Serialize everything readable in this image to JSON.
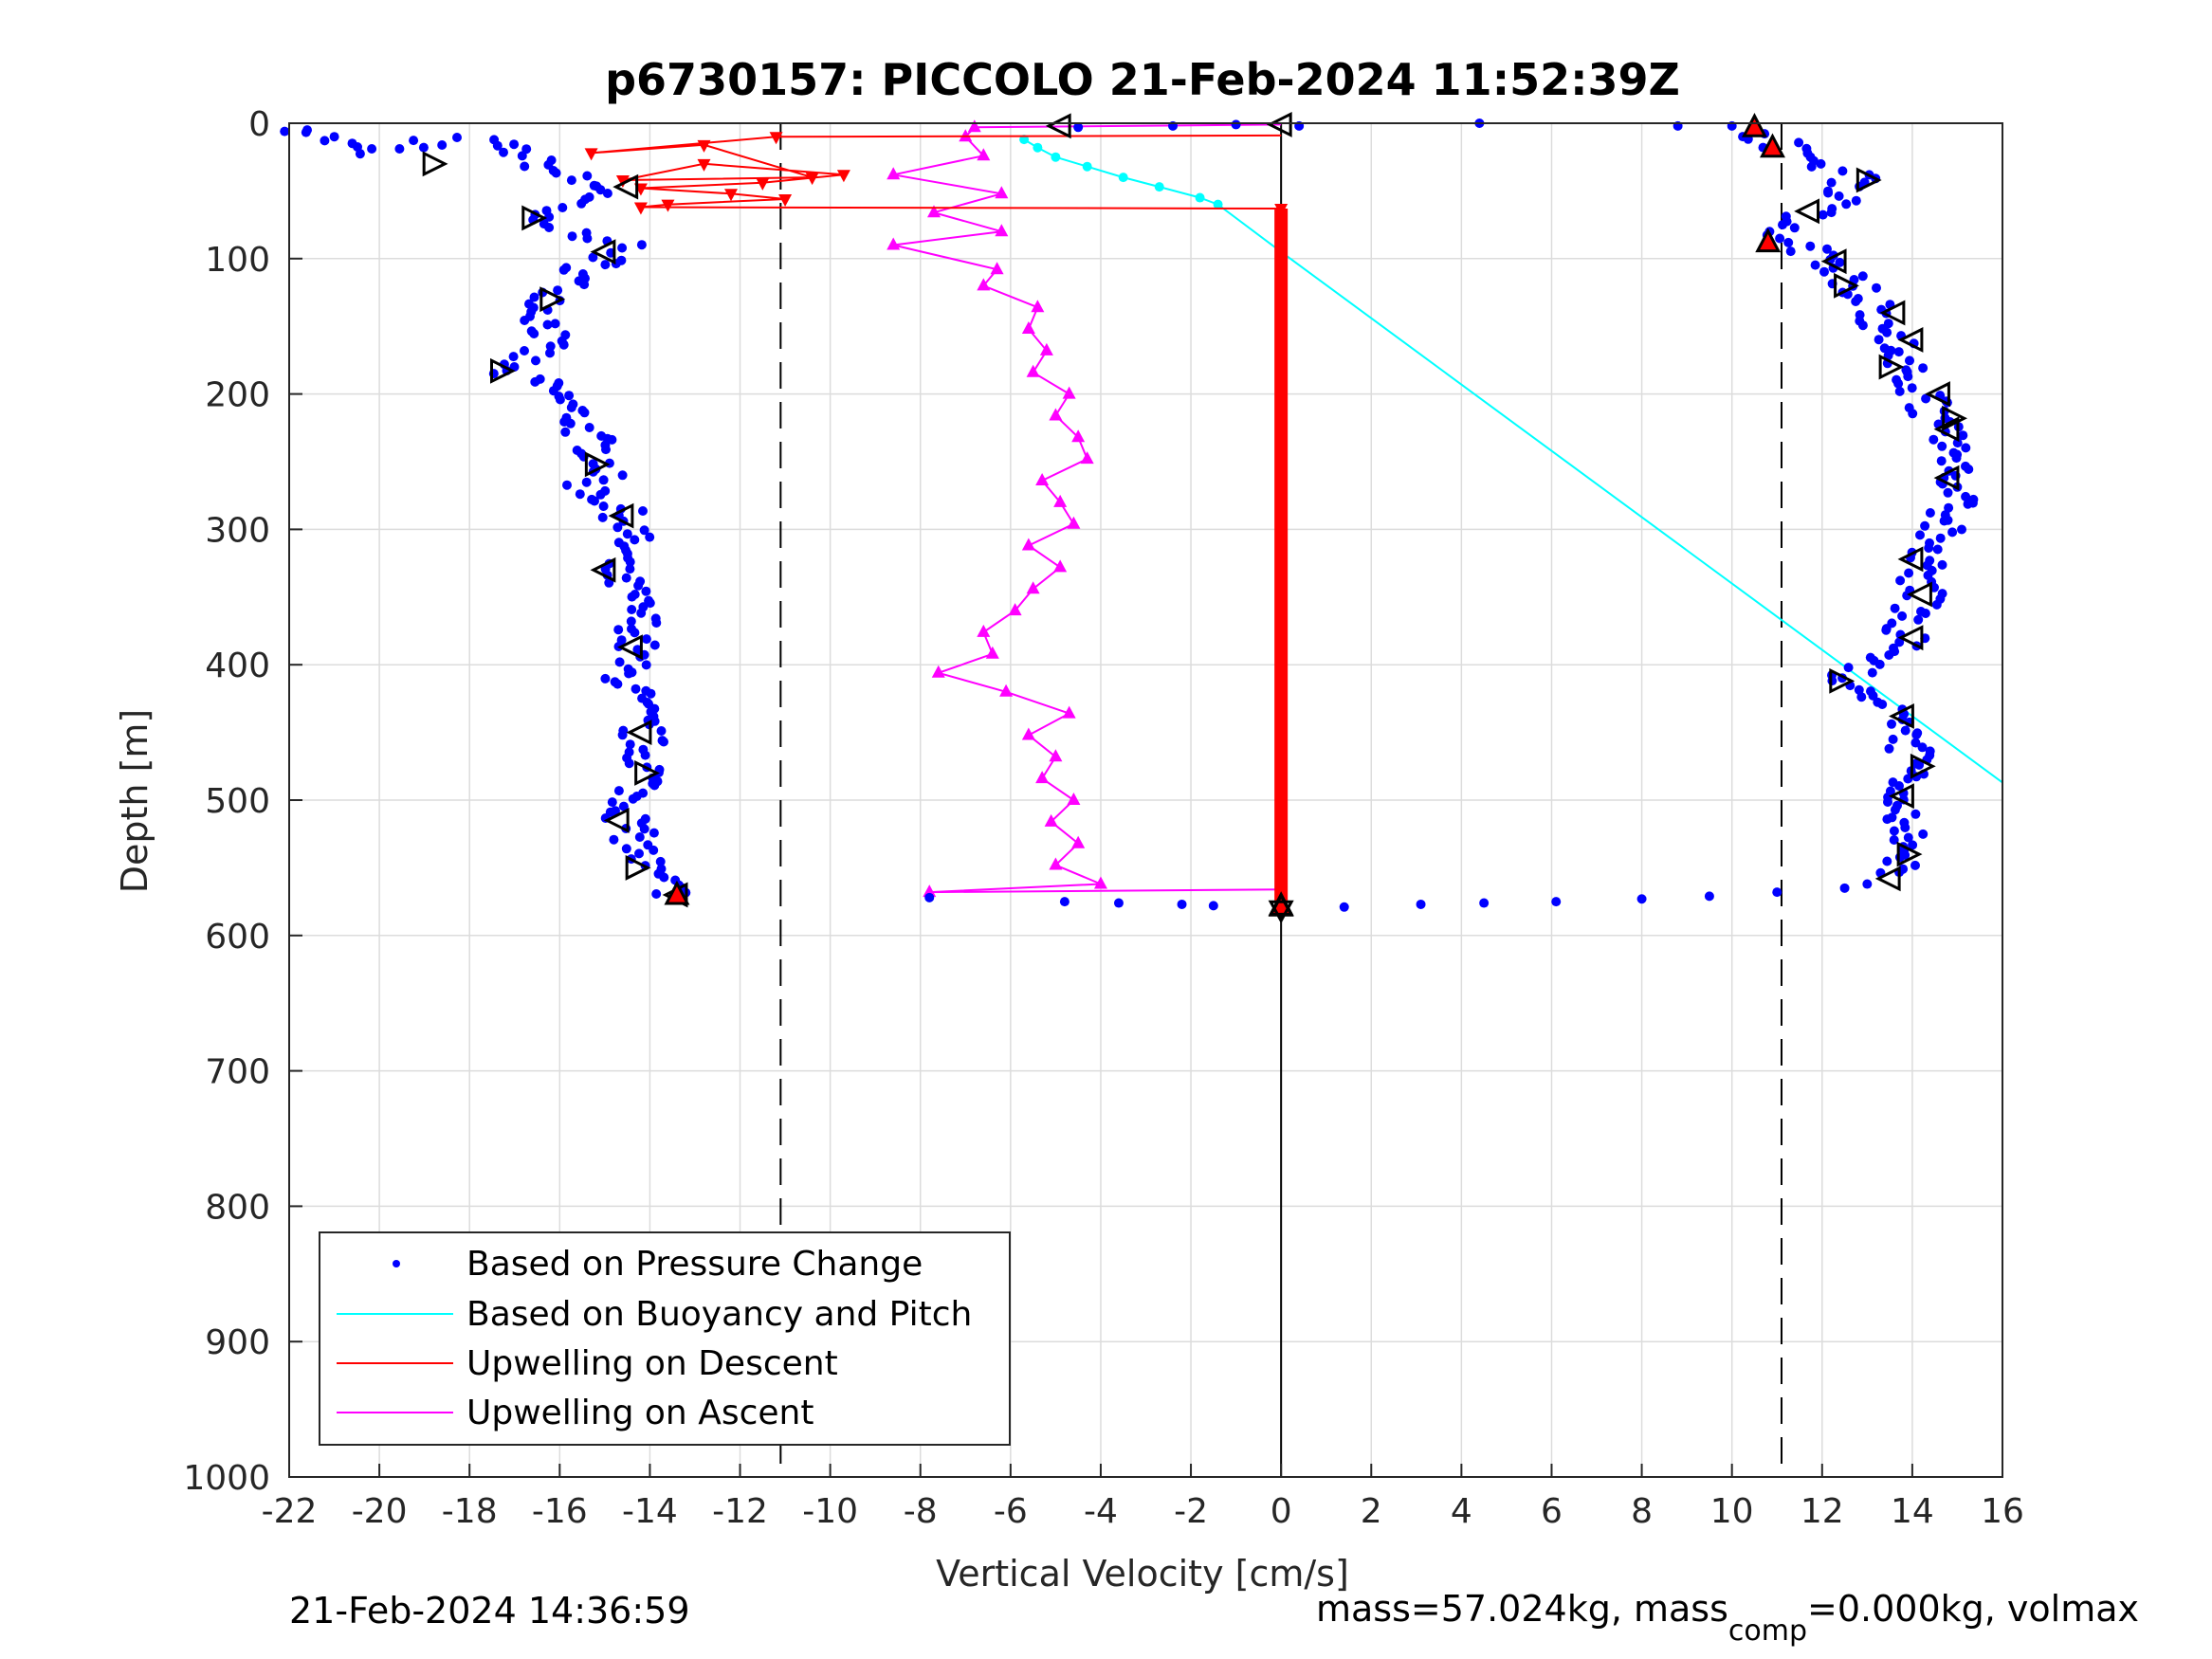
{
  "title": "p6730157: PICCOLO 21-Feb-2024 11:52:39Z",
  "footer_left": "21-Feb-2024 14:36:59",
  "footer_right": {
    "part1": "mass=57.024kg, mass",
    "sub": "comp",
    "part2": "=0.000kg, volmax"
  },
  "colors": {
    "pressure": "#0000ff",
    "buoyancy": "#00ffff",
    "upwell_descent": "#ff0000",
    "upwell_ascent": "#ff00ff",
    "grid": "#dcdcdc",
    "axes": "#262626"
  },
  "chart_data": {
    "type": "scatter",
    "xlabel": "Vertical Velocity [cm/s]",
    "ylabel": "Depth [m]",
    "xlim": [
      -22,
      16
    ],
    "ylim": [
      0,
      1000
    ],
    "y_reversed": true,
    "grid": true,
    "legend_position": "bottom-left",
    "xticks": [
      -22,
      -20,
      -18,
      -16,
      -14,
      -12,
      -10,
      -8,
      -6,
      -4,
      -2,
      0,
      2,
      4,
      6,
      8,
      10,
      12,
      14,
      16
    ],
    "yticks": [
      0,
      100,
      200,
      300,
      400,
      500,
      600,
      700,
      800,
      900,
      1000
    ],
    "reference_lines": [
      {
        "x": -11.1,
        "style": "dashed"
      },
      {
        "x": 0,
        "style": "solid"
      },
      {
        "x": 11.1,
        "style": "dashed"
      }
    ],
    "legend": [
      "Based on Pressure Change",
      "Based on Buoyancy and Pitch",
      "Upwelling on Descent",
      "Upwelling on Ascent"
    ],
    "series": [
      {
        "name": "Based on Pressure Change",
        "style": "dots",
        "descent": [
          [
            -21.6,
            5
          ],
          [
            -20.3,
            22
          ],
          [
            -19.2,
            18
          ],
          [
            -18.7,
            10
          ],
          [
            -17.6,
            12
          ],
          [
            -16.9,
            22
          ],
          [
            -16.2,
            35
          ],
          [
            -15.4,
            45
          ],
          [
            -14.8,
            52
          ],
          [
            -16.3,
            62
          ],
          [
            -16.8,
            72
          ],
          [
            -15.7,
            80
          ],
          [
            -14.6,
            88
          ],
          [
            -14.9,
            98
          ],
          [
            -15.6,
            112
          ],
          [
            -16.0,
            125
          ],
          [
            -16.4,
            140
          ],
          [
            -16.2,
            155
          ],
          [
            -16.6,
            170
          ],
          [
            -17.4,
            183
          ],
          [
            -16.2,
            195
          ],
          [
            -15.8,
            210
          ],
          [
            -15.5,
            225
          ],
          [
            -15.2,
            240
          ],
          [
            -14.9,
            255
          ],
          [
            -15.4,
            268
          ],
          [
            -14.7,
            285
          ],
          [
            -14.4,
            300
          ],
          [
            -14.6,
            315
          ],
          [
            -14.9,
            328
          ],
          [
            -14.5,
            345
          ],
          [
            -14.3,
            360
          ],
          [
            -14.2,
            375
          ],
          [
            -14.4,
            390
          ],
          [
            -14.6,
            405
          ],
          [
            -14.4,
            420
          ],
          [
            -14.3,
            435
          ],
          [
            -14.2,
            450
          ],
          [
            -14.1,
            465
          ],
          [
            -14.0,
            480
          ],
          [
            -14.3,
            495
          ],
          [
            -14.5,
            510
          ],
          [
            -14.4,
            525
          ],
          [
            -14.2,
            540
          ],
          [
            -14.0,
            555
          ],
          [
            -13.6,
            565
          ],
          [
            -13.4,
            570
          ],
          [
            -12.1,
            572
          ]
        ],
        "bottom": [
          [
            -7.8,
            572
          ],
          [
            -4.8,
            575
          ],
          [
            -3.6,
            576
          ],
          [
            -2.2,
            577
          ],
          [
            -1.5,
            578
          ],
          [
            0.0,
            578
          ],
          [
            1.4,
            579
          ],
          [
            3.1,
            577
          ],
          [
            4.5,
            576
          ],
          [
            6.1,
            575
          ],
          [
            8.0,
            573
          ],
          [
            9.5,
            571
          ],
          [
            11.0,
            568
          ],
          [
            12.5,
            565
          ],
          [
            13.0,
            562
          ]
        ],
        "ascent": [
          [
            13.6,
            555
          ],
          [
            13.8,
            540
          ],
          [
            13.8,
            525
          ],
          [
            13.7,
            510
          ],
          [
            13.9,
            495
          ],
          [
            14.0,
            480
          ],
          [
            13.9,
            465
          ],
          [
            13.8,
            450
          ],
          [
            13.6,
            435
          ],
          [
            12.6,
            420
          ],
          [
            12.5,
            410
          ],
          [
            13.5,
            395
          ],
          [
            13.8,
            380
          ],
          [
            14.0,
            365
          ],
          [
            14.2,
            350
          ],
          [
            14.1,
            335
          ],
          [
            14.3,
            320
          ],
          [
            14.5,
            305
          ],
          [
            14.8,
            290
          ],
          [
            15.0,
            275
          ],
          [
            15.1,
            260
          ],
          [
            14.9,
            245
          ],
          [
            14.7,
            230
          ],
          [
            14.5,
            215
          ],
          [
            14.2,
            200
          ],
          [
            14.0,
            185
          ],
          [
            13.8,
            170
          ],
          [
            13.5,
            155
          ],
          [
            13.2,
            140
          ],
          [
            12.8,
            125
          ],
          [
            12.4,
            110
          ],
          [
            11.8,
            95
          ],
          [
            11.2,
            85
          ],
          [
            11.6,
            70
          ],
          [
            12.5,
            55
          ],
          [
            12.8,
            40
          ],
          [
            11.6,
            25
          ],
          [
            11.0,
            15
          ],
          [
            10.4,
            5
          ]
        ],
        "surface": [
          [
            -21.6,
            5
          ],
          [
            -4.5,
            3
          ],
          [
            -2.4,
            2
          ],
          [
            -1.0,
            1
          ],
          [
            0.4,
            2
          ],
          [
            4.4,
            0
          ],
          [
            8.8,
            2
          ],
          [
            10.0,
            2
          ]
        ]
      },
      {
        "name": "Based on Buoyancy and Pitch",
        "style": "line",
        "points": [
          [
            -5.7,
            12
          ],
          [
            -5.4,
            18
          ],
          [
            -5.0,
            25
          ],
          [
            -4.3,
            32
          ],
          [
            -3.5,
            40
          ],
          [
            -2.7,
            47
          ],
          [
            -1.8,
            55
          ],
          [
            -1.4,
            60
          ],
          [
            0.0,
            95
          ],
          [
            16.0,
            487
          ]
        ]
      },
      {
        "name": "Upwelling on Descent",
        "style": "line-triangle-down",
        "points": [
          [
            -11.2,
            10
          ],
          [
            -15.3,
            22
          ],
          [
            -12.8,
            16
          ],
          [
            -10.4,
            40
          ],
          [
            -14.6,
            42
          ],
          [
            -12.8,
            30
          ],
          [
            -9.7,
            38
          ],
          [
            -11.5,
            44
          ],
          [
            -14.2,
            48
          ],
          [
            -12.2,
            52
          ],
          [
            -11.0,
            56
          ],
          [
            -13.6,
            60
          ],
          [
            -14.2,
            62
          ],
          [
            0.0,
            63
          ]
        ],
        "surface_link": [
          [
            -11.2,
            10
          ],
          [
            0.0,
            9
          ]
        ],
        "flat_segment": [
          [
            0.0,
            63
          ],
          [
            0.0,
            575
          ]
        ]
      },
      {
        "name": "Upwelling on Ascent",
        "style": "line-triangle-up",
        "points": [
          [
            -7.8,
            568
          ],
          [
            -4.0,
            562
          ],
          [
            -5.0,
            548
          ],
          [
            -4.5,
            532
          ],
          [
            -5.1,
            516
          ],
          [
            -4.6,
            500
          ],
          [
            -5.3,
            484
          ],
          [
            -5.0,
            468
          ],
          [
            -5.6,
            452
          ],
          [
            -4.7,
            436
          ],
          [
            -6.1,
            420
          ],
          [
            -7.6,
            406
          ],
          [
            -6.4,
            392
          ],
          [
            -6.6,
            376
          ],
          [
            -5.9,
            360
          ],
          [
            -5.5,
            344
          ],
          [
            -4.9,
            328
          ],
          [
            -5.6,
            312
          ],
          [
            -4.6,
            296
          ],
          [
            -4.9,
            280
          ],
          [
            -5.3,
            264
          ],
          [
            -4.3,
            248
          ],
          [
            -4.5,
            232
          ],
          [
            -5.0,
            216
          ],
          [
            -4.7,
            200
          ],
          [
            -5.5,
            184
          ],
          [
            -5.2,
            168
          ],
          [
            -5.6,
            152
          ],
          [
            -5.4,
            136
          ],
          [
            -6.6,
            120
          ],
          [
            -6.3,
            108
          ],
          [
            -8.6,
            90
          ],
          [
            -6.2,
            80
          ],
          [
            -7.7,
            66
          ],
          [
            -6.2,
            52
          ],
          [
            -8.6,
            38
          ],
          [
            -6.6,
            24
          ],
          [
            -7.0,
            10
          ],
          [
            -6.8,
            3
          ]
        ],
        "bottom_link": [
          [
            -7.8,
            568
          ],
          [
            0.0,
            566
          ]
        ],
        "surface_link": [
          [
            -6.8,
            3
          ],
          [
            0.0,
            1
          ]
        ]
      }
    ],
    "markers": {
      "open_triangles_left": [
        [
          -4.9,
          2
        ],
        [
          0.0,
          1
        ],
        [
          -14.5,
          47
        ],
        [
          -15.0,
          95
        ],
        [
          -14.7,
          515
        ],
        [
          -13.4,
          570
        ],
        [
          -14.2,
          450
        ],
        [
          -14.4,
          387
        ],
        [
          -15.0,
          330
        ],
        [
          -14.6,
          290
        ],
        [
          13.5,
          558
        ],
        [
          13.8,
          497
        ],
        [
          13.8,
          438
        ],
        [
          14.0,
          380
        ],
        [
          14.2,
          348
        ],
        [
          14.0,
          322
        ],
        [
          14.8,
          262
        ],
        [
          14.8,
          226
        ],
        [
          14.6,
          200
        ],
        [
          14.0,
          160
        ],
        [
          13.6,
          140
        ],
        [
          12.3,
          102
        ],
        [
          11.7,
          65
        ]
      ],
      "open_triangles_right": [
        [
          -18.8,
          30
        ],
        [
          -16.6,
          70
        ],
        [
          -16.2,
          130
        ],
        [
          -17.3,
          183
        ],
        [
          -15.2,
          252
        ],
        [
          -14.1,
          480
        ],
        [
          -14.3,
          550
        ],
        [
          13.0,
          42
        ],
        [
          12.5,
          120
        ],
        [
          13.5,
          180
        ],
        [
          14.9,
          218
        ],
        [
          14.2,
          475
        ],
        [
          12.4,
          412
        ],
        [
          13.9,
          540
        ]
      ],
      "filled_red_triangles": [
        [
          10.5,
          3
        ],
        [
          10.9,
          18
        ],
        [
          10.8,
          88
        ],
        [
          -13.4,
          570
        ],
        [
          0.0,
          578
        ]
      ],
      "open_hexagram": [
        [
          0.0,
          580
        ]
      ]
    }
  }
}
